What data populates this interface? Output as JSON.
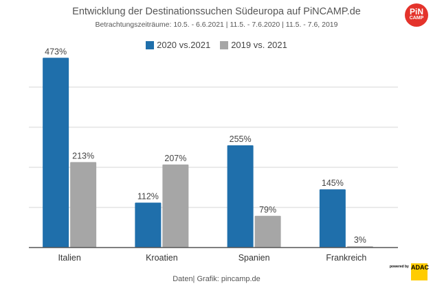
{
  "logo": {
    "line1": "PiN",
    "line2": "CAMP"
  },
  "footer": {
    "source": "Daten| Grafik: pincamp.de",
    "powered_by": "powered by",
    "sponsor": "ADAC"
  },
  "colors": {
    "series1": "#1f6fab",
    "series2": "#a6a6a6",
    "grid": "#e3e3e3",
    "axis": "#555555"
  },
  "chart_data": {
    "type": "bar",
    "title": "Entwicklung der Destinationssuchen Südeuropa auf PiNCAMP.de",
    "subtitle": "Betrachtungszeiträume: 10.5. - 6.6.2021 | 11.5. - 7.6.2020 | 11.5. - 7.6, 2019",
    "categories": [
      "Italien",
      "Kroatien",
      "Spanien",
      "Frankreich"
    ],
    "series": [
      {
        "name": "2020 vs.2021",
        "values": [
          473,
          112,
          255,
          145
        ],
        "labels": [
          "473%",
          "112%",
          "255%",
          "145%"
        ]
      },
      {
        "name": "2019 vs. 2021",
        "values": [
          213,
          207,
          79,
          3
        ],
        "labels": [
          "213%",
          "207%",
          "79%",
          "3%"
        ]
      }
    ],
    "xlabel": "",
    "ylabel": "",
    "ylim": [
      0,
      500
    ],
    "gridlines": [
      100,
      200,
      300,
      400
    ],
    "grid": true,
    "legend_position": "top-center",
    "unit": "%"
  }
}
